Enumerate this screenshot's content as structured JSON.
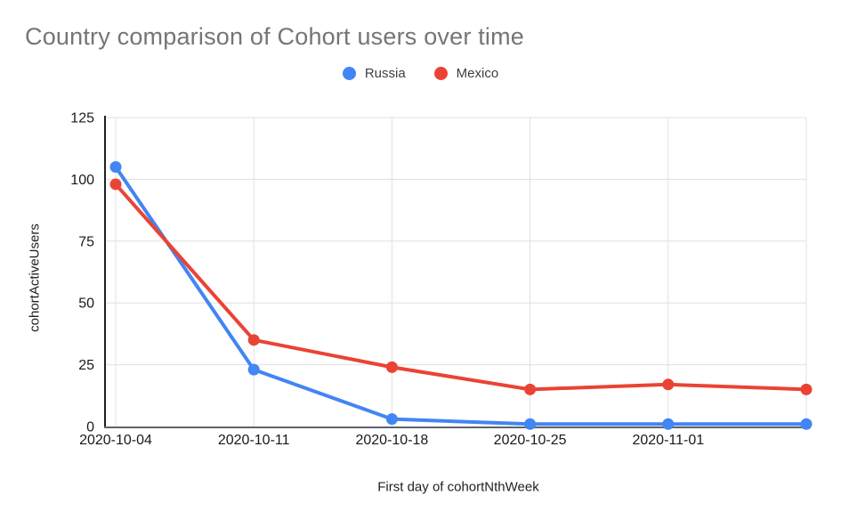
{
  "chart_data": {
    "type": "line",
    "title": "Country comparison of Cohort users over time",
    "categories": [
      "2020-10-04",
      "2020-10-11",
      "2020-10-18",
      "2020-10-25",
      "2020-11-01",
      ""
    ],
    "series": [
      {
        "name": "Russia",
        "color": "#4285F4",
        "values": [
          105,
          23,
          3,
          1,
          1,
          1
        ]
      },
      {
        "name": "Mexico",
        "color": "#EA4335",
        "values": [
          98,
          35,
          24,
          15,
          17,
          15
        ]
      }
    ],
    "xlabel": "First day of cohortNthWeek",
    "ylabel": "cohortActiveUsers",
    "ylim": [
      0,
      125
    ],
    "yticks": [
      0,
      25,
      50,
      75,
      100,
      125
    ],
    "grid": true,
    "legend_position": "top-center",
    "marker_radius": 6.5,
    "line_width": 4
  },
  "style_colors": {
    "background": "#ffffff",
    "title_text": "#757575",
    "legend_text": "#3c4043",
    "axis_tick_text": "#1a1a1a",
    "gridline": "#e0e0e0",
    "y_axis_line": "#212124",
    "x_axis_line": "#5f6368"
  }
}
